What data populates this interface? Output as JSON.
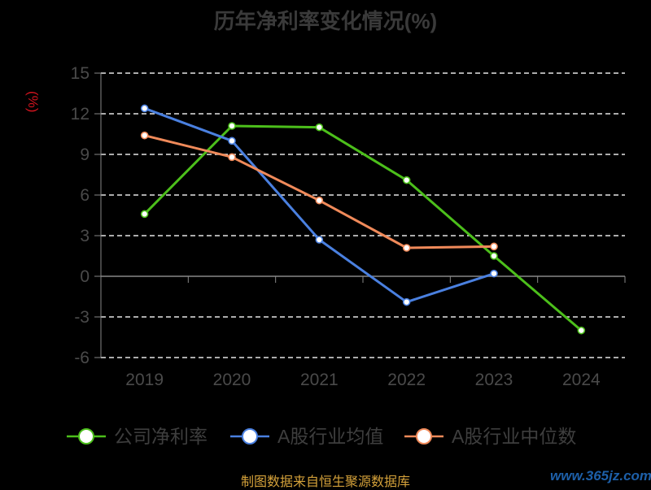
{
  "chart_data": {
    "type": "line",
    "title": "历年净利率变化情况(%)",
    "ylabel": "(%)",
    "xlabel": "",
    "x": [
      "2019",
      "2020",
      "2021",
      "2022",
      "2023",
      "2024"
    ],
    "ylim": [
      -6,
      15
    ],
    "yticks": [
      15,
      12,
      9,
      6,
      3,
      0,
      -3,
      -6
    ],
    "grid": true,
    "legend_position": "bottom",
    "series": [
      {
        "name": "公司净利率",
        "color": "#4cbf1b",
        "values": [
          4.6,
          11.1,
          11.0,
          7.1,
          1.5,
          -4.0
        ]
      },
      {
        "name": "A股行业均值",
        "color": "#4a80e0",
        "values": [
          12.4,
          10.0,
          2.7,
          -1.9,
          0.2,
          null
        ]
      },
      {
        "name": "A股行业中位数",
        "color": "#f08a5a",
        "values": [
          10.4,
          8.8,
          5.6,
          2.1,
          2.2,
          null
        ]
      }
    ]
  },
  "footer": {
    "source": "制图数据来自恒生聚源数据库",
    "watermark": "www.365jz.com"
  }
}
